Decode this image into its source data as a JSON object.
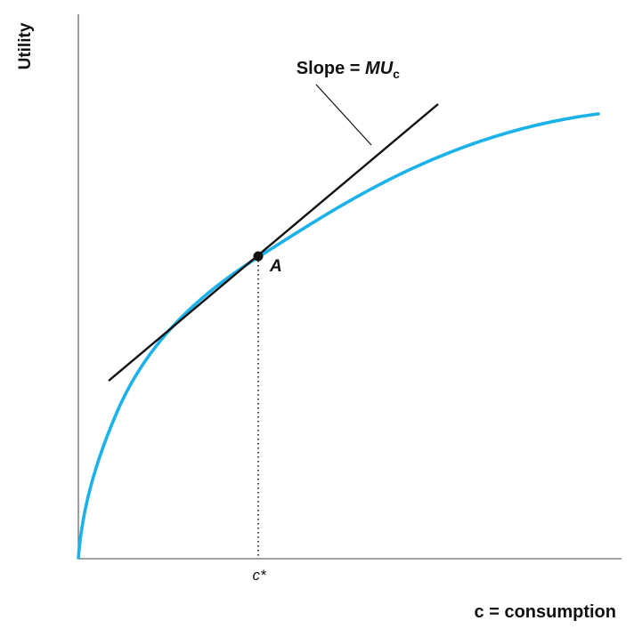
{
  "diagram": {
    "y_axis_label": "Utility",
    "x_axis_label": "c = consumption",
    "x_tick_label": "c*",
    "point_label": "A",
    "slope_label": {
      "prefix": "Slope = ",
      "main": "MU",
      "subscript": "c"
    },
    "colors": {
      "curve": "#1ab2e8",
      "lines": "#111111",
      "axes": "#6b6b6b"
    }
  }
}
